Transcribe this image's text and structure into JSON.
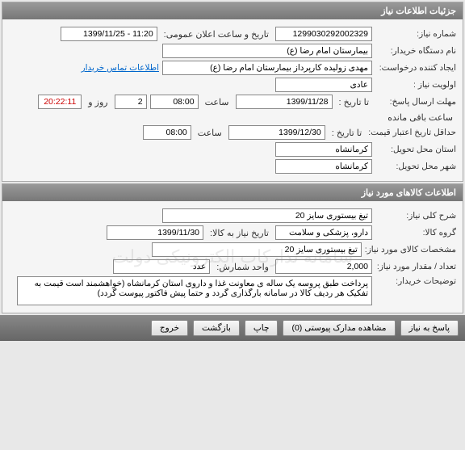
{
  "panel1": {
    "title": "جزئیات اطلاعات نیاز",
    "request_number_label": "شماره نیاز:",
    "request_number": "1299030292002329",
    "announce_date_label": "تاریخ و ساعت اعلان عمومی:",
    "announce_date": "11:20 - 1399/11/25",
    "device_name_label": "نام دستگاه خریدار:",
    "device_name": "بیمارستان امام رضا (ع)",
    "creator_label": "ایجاد کننده درخواست:",
    "creator": "مهدی زولیده کارپرداز بیمارستان امام رضا (ع)",
    "contact_link": "اطلاعات تماس خریدار",
    "priority_label": "اولویت نیاز :",
    "priority": "عادی",
    "deadline_label": "مهلت ارسال پاسخ:",
    "to_date_label": "تا تاریخ :",
    "deadline_date": "1399/11/28",
    "time_label": "ساعت",
    "deadline_time": "08:00",
    "day_label": "روز و",
    "days_remaining": "2",
    "countdown": "20:22:11",
    "remaining_label": "ساعت باقی مانده",
    "min_validity_label": "حداقل تاریخ اعتبار قیمت:",
    "min_validity_date": "1399/12/30",
    "min_validity_time": "08:00",
    "delivery_province_label": "استان محل تحویل:",
    "delivery_province": "کرمانشاه",
    "delivery_city_label": "شهر محل تحویل:",
    "delivery_city": "کرمانشاه"
  },
  "panel2": {
    "title": "اطلاعات کالاهای مورد نیاز",
    "watermark": "سامانه تدارکات الکترونیکی دولت",
    "general_desc_label": "شرح کلی نیاز:",
    "general_desc": "تیغ بیستوری سایز 20",
    "goods_group_label": "گروه کالا:",
    "goods_group": "دارو، پزشکی و سلامت",
    "need_by_label": "تاریخ نیاز به کالا:",
    "need_by_date": "1399/11/30",
    "goods_spec_label": "مشخصات کالای مورد نیاز:",
    "goods_spec": "تیغ بیستوری سایز 20",
    "quantity_label": "تعداد / مقدار مورد نیاز:",
    "quantity": "2,000",
    "unit_label": "واحد شمارش:",
    "unit": "عدد",
    "buyer_notes_label": "توضیحات خریدار:",
    "buyer_notes": "پرداخت طبق پروسه یک ساله ی معاونت غذا و داروی استان کرمانشاه (خواهشمند است قیمت به تفکیک هر ردیف کالا در سامانه بارگذاری گردد و حتما پیش فاکتور پیوست گردد)"
  },
  "footer": {
    "respond": "پاسخ به نیاز",
    "attachments": "مشاهده مدارک پیوستی (0)",
    "print": "چاپ",
    "back": "بازگشت",
    "exit": "خروج"
  }
}
